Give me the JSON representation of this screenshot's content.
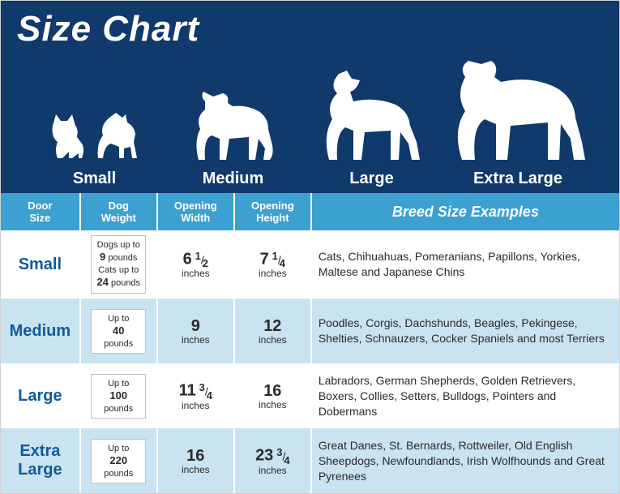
{
  "title": "Size Chart",
  "header_bg": "#0f3a6b",
  "table_header_bg": "#3ca0d0",
  "alt_row_bg": "#c9e3f0",
  "size_label_color": "#0f5a9c",
  "silhouettes": [
    {
      "label": "Small",
      "icon": "small-pets"
    },
    {
      "label": "Medium",
      "icon": "medium-dog"
    },
    {
      "label": "Large",
      "icon": "large-dog"
    },
    {
      "label": "Extra Large",
      "icon": "xlarge-dog"
    }
  ],
  "columns": [
    {
      "line1": "Door",
      "line2": "Size"
    },
    {
      "line1": "Dog",
      "line2": "Weight"
    },
    {
      "line1": "Opening",
      "line2": "Width"
    },
    {
      "line1": "Opening",
      "line2": "Height"
    },
    {
      "breed_header": "Breed Size Examples"
    }
  ],
  "rows": [
    {
      "size": "Small",
      "weight_html": "Dogs up to<br><span class='num'>9</span> pounds<br>Cats up to<br><span class='num'>24</span> pounds",
      "width": {
        "whole": "6",
        "frac_n": "1",
        "frac_d": "2",
        "unit": "inches"
      },
      "height": {
        "whole": "7",
        "frac_n": "1",
        "frac_d": "4",
        "unit": "inches"
      },
      "breeds": "Cats, Chihuahuas, Pomeranians, Papillons, Yorkies, Maltese and Japanese Chins",
      "alt": false
    },
    {
      "size": "Medium",
      "weight_html": "Up to<br><span class='num'>40</span><br>pounds",
      "width": {
        "whole": "9",
        "frac_n": "",
        "frac_d": "",
        "unit": "inches"
      },
      "height": {
        "whole": "12",
        "frac_n": "",
        "frac_d": "",
        "unit": "inches"
      },
      "breeds": "Poodles, Corgis, Dachshunds, Beagles, Pekingese, Shelties, Schnauzers, Cocker Spaniels and most Terriers",
      "alt": true
    },
    {
      "size": "Large",
      "weight_html": "Up to<br><span class='num'>100</span><br>pounds",
      "width": {
        "whole": "11",
        "frac_n": "3",
        "frac_d": "4",
        "unit": "inches"
      },
      "height": {
        "whole": "16",
        "frac_n": "",
        "frac_d": "",
        "unit": "inches"
      },
      "breeds": "Labradors, German Shepherds, Golden Retrievers, Boxers, Collies, Setters, Bulldogs, Pointers and Dobermans",
      "alt": false
    },
    {
      "size": "Extra Large",
      "weight_html": "Up to<br><span class='num'>220</span><br>pounds",
      "width": {
        "whole": "16",
        "frac_n": "",
        "frac_d": "",
        "unit": "inches"
      },
      "height": {
        "whole": "23",
        "frac_n": "3",
        "frac_d": "4",
        "unit": "inches"
      },
      "breeds": "Great Danes, St. Bernards, Rottweiler, Old English Sheepdogs, Newfoundlands, Irish Wolfhounds and Great Pyrenees",
      "alt": true
    }
  ]
}
